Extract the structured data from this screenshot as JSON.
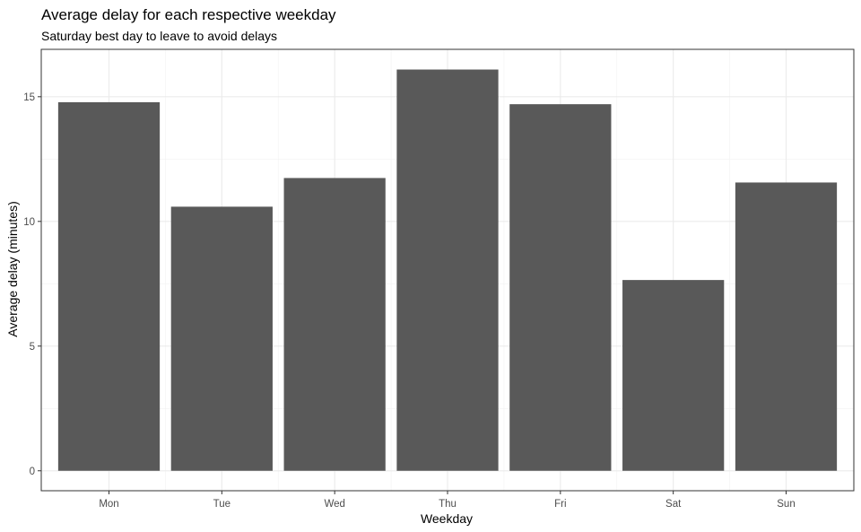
{
  "chart_data": {
    "type": "bar",
    "title": "Average delay for each respective weekday",
    "subtitle": "Saturday best day to leave to avoid delays",
    "xlabel": "Weekday",
    "ylabel": "Average delay (minutes)",
    "categories": [
      "Mon",
      "Tue",
      "Wed",
      "Thu",
      "Fri",
      "Sat",
      "Sun"
    ],
    "values": [
      14.78,
      10.59,
      11.74,
      16.09,
      14.7,
      7.65,
      11.56
    ],
    "ylim": [
      -0.8,
      16.9
    ],
    "yticks": [
      0,
      5,
      10,
      15
    ],
    "ytick_labels": [
      "0",
      "5",
      "10",
      "15"
    ],
    "grid": true,
    "legend": "none",
    "colors": {
      "bar": "#595959",
      "grid_major": "#ebebeb",
      "grid_minor": "#f2f2f2",
      "panel_border": "#333333",
      "tick_label": "#4d4d4d"
    }
  }
}
